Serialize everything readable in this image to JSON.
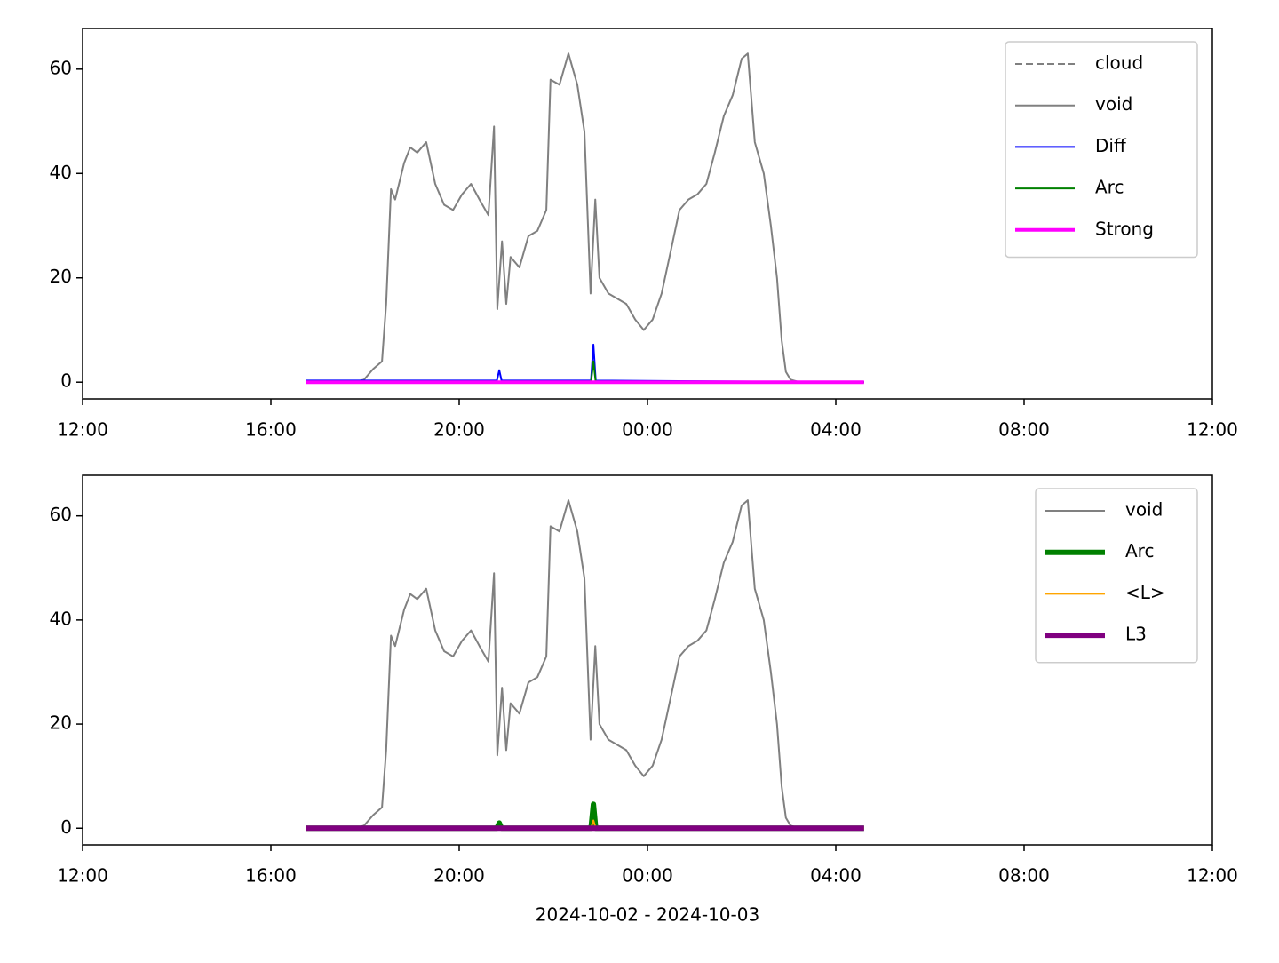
{
  "chart_data": [
    {
      "type": "line",
      "xlim": [
        12,
        36
      ],
      "ylim": [
        -3.2,
        67.8
      ],
      "xticks": [
        {
          "value": 12,
          "label": "12:00"
        },
        {
          "value": 16,
          "label": "16:00"
        },
        {
          "value": 20,
          "label": "20:00"
        },
        {
          "value": 24,
          "label": "00:00"
        },
        {
          "value": 28,
          "label": "04:00"
        },
        {
          "value": 32,
          "label": "08:00"
        },
        {
          "value": 36,
          "label": "12:00"
        }
      ],
      "yticks": [
        0,
        20,
        40,
        60
      ],
      "legend": "upper right",
      "series": [
        {
          "name": "cloud",
          "color": "#808080",
          "dashed": true,
          "linewidth": 1,
          "x": [
            16.75,
            28.6
          ],
          "values": [
            null,
            null
          ]
        },
        {
          "name": "void",
          "color": "#808080",
          "linewidth": 1,
          "x": [
            16.75,
            17.0,
            17.5,
            17.9,
            17.98,
            18.17,
            18.36,
            18.45,
            18.55,
            18.64,
            18.83,
            18.96,
            19.11,
            19.3,
            19.49,
            19.68,
            19.87,
            20.06,
            20.25,
            20.43,
            20.62,
            20.74,
            20.81,
            20.91,
            21.0,
            21.09,
            21.28,
            21.47,
            21.66,
            21.85,
            21.94,
            22.13,
            22.32,
            22.51,
            22.66,
            22.79,
            22.89,
            22.98,
            23.17,
            23.36,
            23.55,
            23.74,
            23.92,
            24.11,
            24.3,
            24.49,
            24.68,
            24.87,
            25.06,
            25.25,
            25.43,
            25.62,
            25.81,
            26.0,
            26.13,
            26.28,
            26.47,
            26.62,
            26.75,
            26.85,
            26.94,
            27.04,
            27.23,
            28.6
          ],
          "values": [
            0,
            0,
            0.1,
            0.3,
            0.5,
            2.5,
            4,
            15,
            37,
            35,
            42,
            45,
            44,
            46,
            38,
            34,
            33,
            36,
            38,
            35,
            32,
            49,
            14,
            27,
            15,
            24,
            22,
            28,
            29,
            33,
            58,
            57,
            63,
            57,
            48,
            17,
            35,
            20,
            17,
            16,
            15,
            12,
            10,
            12,
            17,
            25,
            33,
            35,
            36,
            38,
            44,
            51,
            55,
            62,
            63,
            46,
            40,
            30,
            20,
            8,
            2,
            0.5,
            0,
            0
          ]
        },
        {
          "name": "Diff",
          "color": "#0000ff",
          "linewidth": 1,
          "x": [
            16.75,
            20.8,
            20.85,
            20.9,
            22.8,
            22.85,
            22.9,
            28.6
          ],
          "values": [
            0.3,
            0.3,
            2.3,
            0.3,
            0.3,
            7.2,
            0.3,
            0
          ]
        },
        {
          "name": "Arc",
          "color": "#008000",
          "linewidth": 1,
          "x": [
            16.75,
            22.8,
            22.85,
            22.9,
            28.6
          ],
          "values": [
            0,
            0,
            4,
            0,
            0
          ]
        },
        {
          "name": "Strong",
          "color": "#ff00ff",
          "linewidth": 2,
          "x": [
            16.75,
            28.6
          ],
          "values": [
            0,
            0
          ]
        }
      ]
    },
    {
      "type": "line",
      "xlim": [
        12,
        36
      ],
      "ylim": [
        -3.2,
        67.8
      ],
      "xticks": [
        {
          "value": 12,
          "label": "12:00"
        },
        {
          "value": 16,
          "label": "16:00"
        },
        {
          "value": 20,
          "label": "20:00"
        },
        {
          "value": 24,
          "label": "00:00"
        },
        {
          "value": 28,
          "label": "04:00"
        },
        {
          "value": 32,
          "label": "08:00"
        },
        {
          "value": 36,
          "label": "12:00"
        }
      ],
      "yticks": [
        0,
        20,
        40,
        60
      ],
      "legend": "upper right",
      "x_label": "2024-10-02 - 2024-10-03",
      "series": [
        {
          "name": "void",
          "color": "#808080",
          "linewidth": 1,
          "x": [
            16.75,
            17.0,
            17.5,
            17.9,
            17.98,
            18.17,
            18.36,
            18.45,
            18.55,
            18.64,
            18.83,
            18.96,
            19.11,
            19.3,
            19.49,
            19.68,
            19.87,
            20.06,
            20.25,
            20.43,
            20.62,
            20.74,
            20.81,
            20.91,
            21.0,
            21.09,
            21.28,
            21.47,
            21.66,
            21.85,
            21.94,
            22.13,
            22.32,
            22.51,
            22.66,
            22.79,
            22.89,
            22.98,
            23.17,
            23.36,
            23.55,
            23.74,
            23.92,
            24.11,
            24.3,
            24.49,
            24.68,
            24.87,
            25.06,
            25.25,
            25.43,
            25.62,
            25.81,
            26.0,
            26.13,
            26.28,
            26.47,
            26.62,
            26.75,
            26.85,
            26.94,
            27.04,
            27.23,
            28.6
          ],
          "values": [
            0,
            0,
            0.1,
            0.3,
            0.5,
            2.5,
            4,
            15,
            37,
            35,
            42,
            45,
            44,
            46,
            38,
            34,
            33,
            36,
            38,
            35,
            32,
            49,
            14,
            27,
            15,
            24,
            22,
            28,
            29,
            33,
            58,
            57,
            63,
            57,
            48,
            17,
            35,
            20,
            17,
            16,
            15,
            12,
            10,
            12,
            17,
            25,
            33,
            35,
            36,
            38,
            44,
            51,
            55,
            62,
            63,
            46,
            40,
            30,
            20,
            8,
            2,
            0.5,
            0,
            0
          ]
        },
        {
          "name": "Arc",
          "color": "#008000",
          "linewidth": 3,
          "x": [
            16.75,
            20.8,
            20.85,
            20.9,
            22.8,
            22.85,
            22.9,
            28.6
          ],
          "values": [
            0,
            0,
            1,
            0,
            0,
            4.6,
            0,
            0
          ]
        },
        {
          "name": "<L>",
          "color": "#ffa500",
          "linewidth": 1,
          "x": [
            16.75,
            22.8,
            22.85,
            22.9,
            28.6
          ],
          "values": [
            0,
            0,
            1.5,
            0,
            0
          ]
        },
        {
          "name": "L3",
          "color": "#800080",
          "linewidth": 3,
          "x": [
            16.75,
            28.6
          ],
          "values": [
            0,
            0
          ]
        }
      ]
    }
  ]
}
